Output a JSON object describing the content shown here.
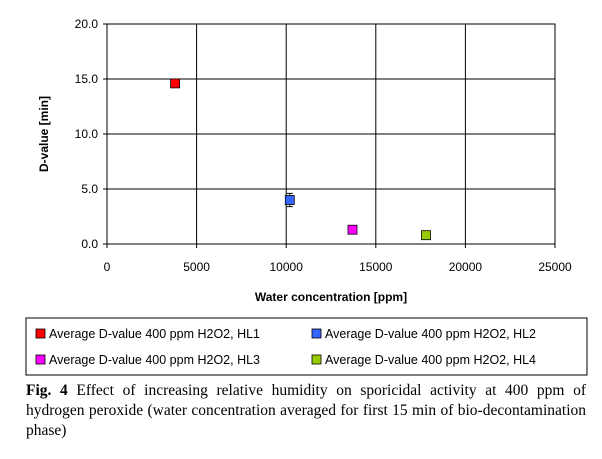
{
  "chart_data": {
    "type": "scatter",
    "xlabel": "Water concentration [ppm]",
    "ylabel": "D-value [min]",
    "xlim": [
      0,
      25000
    ],
    "ylim": [
      0,
      20
    ],
    "x_ticks": [
      "0",
      "5000",
      "10000",
      "15000",
      "20000",
      "25000"
    ],
    "y_ticks": [
      "0.0",
      "5.0",
      "10.0",
      "15.0",
      "20.0"
    ],
    "grid": true,
    "legend_position": "bottom",
    "series": [
      {
        "name": "Average D-value 400 ppm H2O2, HL1",
        "color": "#ff0000",
        "x": 3800,
        "y": 14.6,
        "err": 0
      },
      {
        "name": "Average D-value 400 ppm H2O2, HL2",
        "color": "#3366ff",
        "x": 10200,
        "y": 4.0,
        "err": 0.6
      },
      {
        "name": "Average D-value 400 ppm H2O2, HL3",
        "color": "#ff00ff",
        "x": 13700,
        "y": 1.3,
        "err": 0
      },
      {
        "name": "Average D-value 400 ppm H2O2, HL4",
        "color": "#99cc00",
        "x": 17800,
        "y": 0.8,
        "err": 0
      }
    ]
  },
  "caption": {
    "label": "Fig. 4",
    "text": " Effect of increasing relative humidity on sporicidal activity at 400 ppm of hydrogen peroxide (water concentration averaged for first 15 min of bio-decontamination phase)"
  }
}
